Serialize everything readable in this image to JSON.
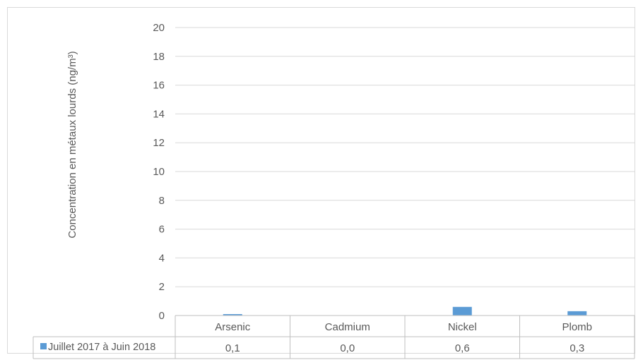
{
  "chart_data": {
    "type": "bar",
    "ylabel": "Concentration en métaux lourds (ng/m³)",
    "ylim": [
      0,
      20
    ],
    "yticks": [
      0,
      2,
      4,
      6,
      8,
      10,
      12,
      14,
      16,
      18,
      20
    ],
    "categories": [
      "Arsenic",
      "Cadmium",
      "Nickel",
      "Plomb"
    ],
    "series": [
      {
        "name": "Juillet 2017 à Juin 2018",
        "values": [
          0.1,
          0.0,
          0.6,
          0.3
        ],
        "labels": [
          "0,1",
          "0,0",
          "0,6",
          "0,3"
        ],
        "color": "#5b9bd5"
      }
    ],
    "legend": "data-table",
    "grid": true
  },
  "colors": {
    "gridline": "#d9d9d9",
    "text": "#595959",
    "table_border": "#bfbfbf"
  }
}
